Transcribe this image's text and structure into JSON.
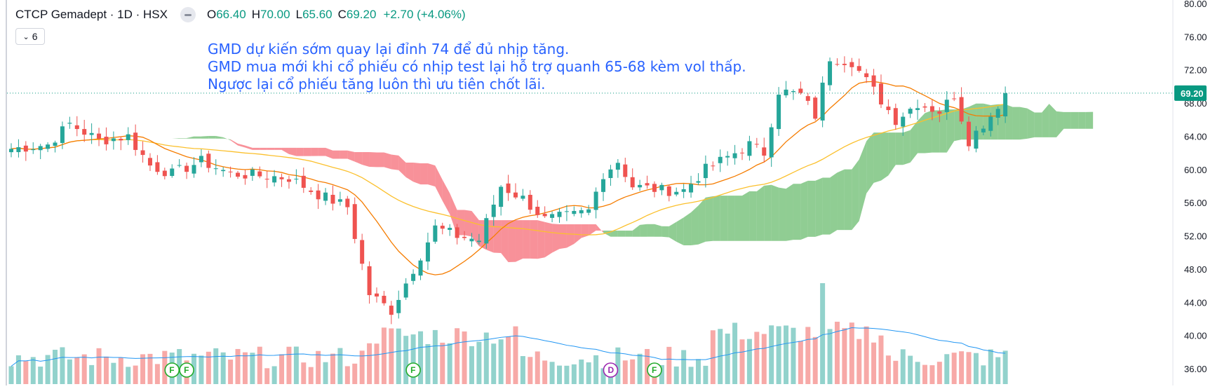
{
  "header": {
    "symbol": "CTCP Gemadept · 1D · HSX",
    "o_label": "O",
    "o_value": "66.40",
    "h_label": "H",
    "h_value": "70.00",
    "l_label": "L",
    "l_value": "65.60",
    "c_label": "C",
    "c_value": "69.20",
    "change": "+2.70 (+4.06%)",
    "indicator_count": "6"
  },
  "annotation": [
    "GMD dự kiến sớm quay lại đỉnh 74 để đủ nhịp tăng.",
    "GMD mua mới khi cổ phiếu có nhịp test lại hỗ trợ quanh 65-68 kèm vol thấp.",
    "Ngược lại cổ phiếu tăng luôn thì ưu tiên chốt lãi."
  ],
  "colors": {
    "up": "#26a69a",
    "down": "#ef5350",
    "cloud_up": "#4caf50",
    "cloud_down": "#f23645",
    "ma_fast": "#f57c00",
    "ma_slow": "#fbc02d",
    "vol_ma": "#2196f3",
    "last_price": "#089981",
    "annotation": "#2962ff",
    "event_f": "#22ab2a",
    "event_d": "#9c27b0"
  },
  "events": [
    {
      "label": "F",
      "bar": 22
    },
    {
      "label": "F",
      "bar": 24
    },
    {
      "label": "F",
      "bar": 55
    },
    {
      "label": "D",
      "bar": 82
    },
    {
      "label": "F",
      "bar": 88
    }
  ],
  "chart_data": {
    "type": "candlestick",
    "title": "CTCP Gemadept · 1D · HSX",
    "ylim": [
      35,
      81
    ],
    "yticks": [
      "36.00",
      "40.00",
      "44.00",
      "48.00",
      "52.00",
      "56.00",
      "60.00",
      "64.00",
      "68.00",
      "72.00",
      "76.00",
      "80.00"
    ],
    "last_price": "69.20",
    "anchors": [
      {
        "i": 0,
        "p": 62.5
      },
      {
        "i": 5,
        "p": 63.0
      },
      {
        "i": 8,
        "p": 65.5
      },
      {
        "i": 12,
        "p": 63.5
      },
      {
        "i": 16,
        "p": 64.0
      },
      {
        "i": 19,
        "p": 60.5
      },
      {
        "i": 22,
        "p": 59.5
      },
      {
        "i": 26,
        "p": 61.0
      },
      {
        "i": 30,
        "p": 59.5
      },
      {
        "i": 38,
        "p": 59.0
      },
      {
        "i": 42,
        "p": 57.0
      },
      {
        "i": 46,
        "p": 55.5
      },
      {
        "i": 49,
        "p": 45.0
      },
      {
        "i": 52,
        "p": 43.0
      },
      {
        "i": 55,
        "p": 48.0
      },
      {
        "i": 58,
        "p": 53.0
      },
      {
        "i": 61,
        "p": 52.0
      },
      {
        "i": 64,
        "p": 51.5
      },
      {
        "i": 67,
        "p": 58.0
      },
      {
        "i": 70,
        "p": 56.5
      },
      {
        "i": 73,
        "p": 54.0
      },
      {
        "i": 77,
        "p": 54.5
      },
      {
        "i": 79,
        "p": 55.0
      },
      {
        "i": 81,
        "p": 59.5
      },
      {
        "i": 83,
        "p": 61.0
      },
      {
        "i": 85,
        "p": 58.0
      },
      {
        "i": 89,
        "p": 57.5
      },
      {
        "i": 92,
        "p": 57.5
      },
      {
        "i": 95,
        "p": 60.0
      },
      {
        "i": 98,
        "p": 61.5
      },
      {
        "i": 101,
        "p": 63.0
      },
      {
        "i": 103,
        "p": 62.0
      },
      {
        "i": 105,
        "p": 69.5
      },
      {
        "i": 108,
        "p": 69.0
      },
      {
        "i": 110,
        "p": 66.5
      },
      {
        "i": 112,
        "p": 73.5
      },
      {
        "i": 115,
        "p": 73.0
      },
      {
        "i": 118,
        "p": 69.5
      },
      {
        "i": 121,
        "p": 66.0
      },
      {
        "i": 124,
        "p": 68.0
      },
      {
        "i": 127,
        "p": 67.0
      },
      {
        "i": 129,
        "p": 69.0
      },
      {
        "i": 131,
        "p": 63.5
      },
      {
        "i": 134,
        "p": 66.5
      },
      {
        "i": 136,
        "p": 69.2
      }
    ],
    "bar_count": 137
  }
}
